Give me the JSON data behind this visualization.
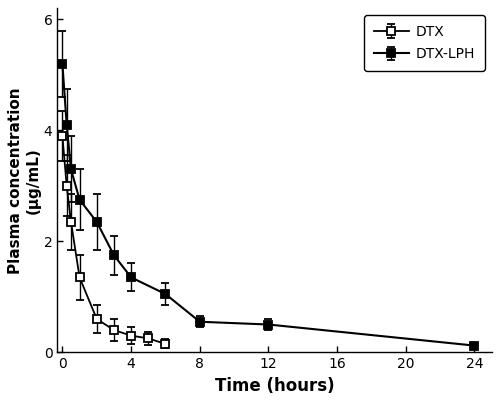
{
  "dtx_time": [
    0,
    0.25,
    0.5,
    1,
    2,
    3,
    4,
    5,
    6
  ],
  "dtx_conc": [
    3.9,
    3.0,
    2.35,
    1.35,
    0.6,
    0.4,
    0.3,
    0.25,
    0.15
  ],
  "dtx_err": [
    0.45,
    0.55,
    0.5,
    0.4,
    0.25,
    0.2,
    0.15,
    0.12,
    0.08
  ],
  "lph_time": [
    0,
    0.25,
    0.5,
    1,
    2,
    3,
    4,
    6,
    8,
    12,
    24
  ],
  "lph_conc": [
    5.2,
    4.1,
    3.3,
    2.75,
    2.35,
    1.75,
    1.35,
    1.05,
    0.55,
    0.5,
    0.12
  ],
  "lph_err": [
    0.6,
    0.65,
    0.6,
    0.55,
    0.5,
    0.35,
    0.25,
    0.2,
    0.1,
    0.1,
    0.05
  ],
  "xlabel": "Time (hours)",
  "ylabel": "Plasma concentration\n(μg/mL)",
  "xlim": [
    -0.3,
    25
  ],
  "ylim": [
    0,
    6.2
  ],
  "xticks": [
    0,
    4,
    8,
    12,
    16,
    20,
    24
  ],
  "yticks": [
    0,
    2,
    4,
    6
  ],
  "legend_dtx": "DTX",
  "legend_lph": "DTX-LPH",
  "line_color": "#000000",
  "bg_color": "#ffffff"
}
